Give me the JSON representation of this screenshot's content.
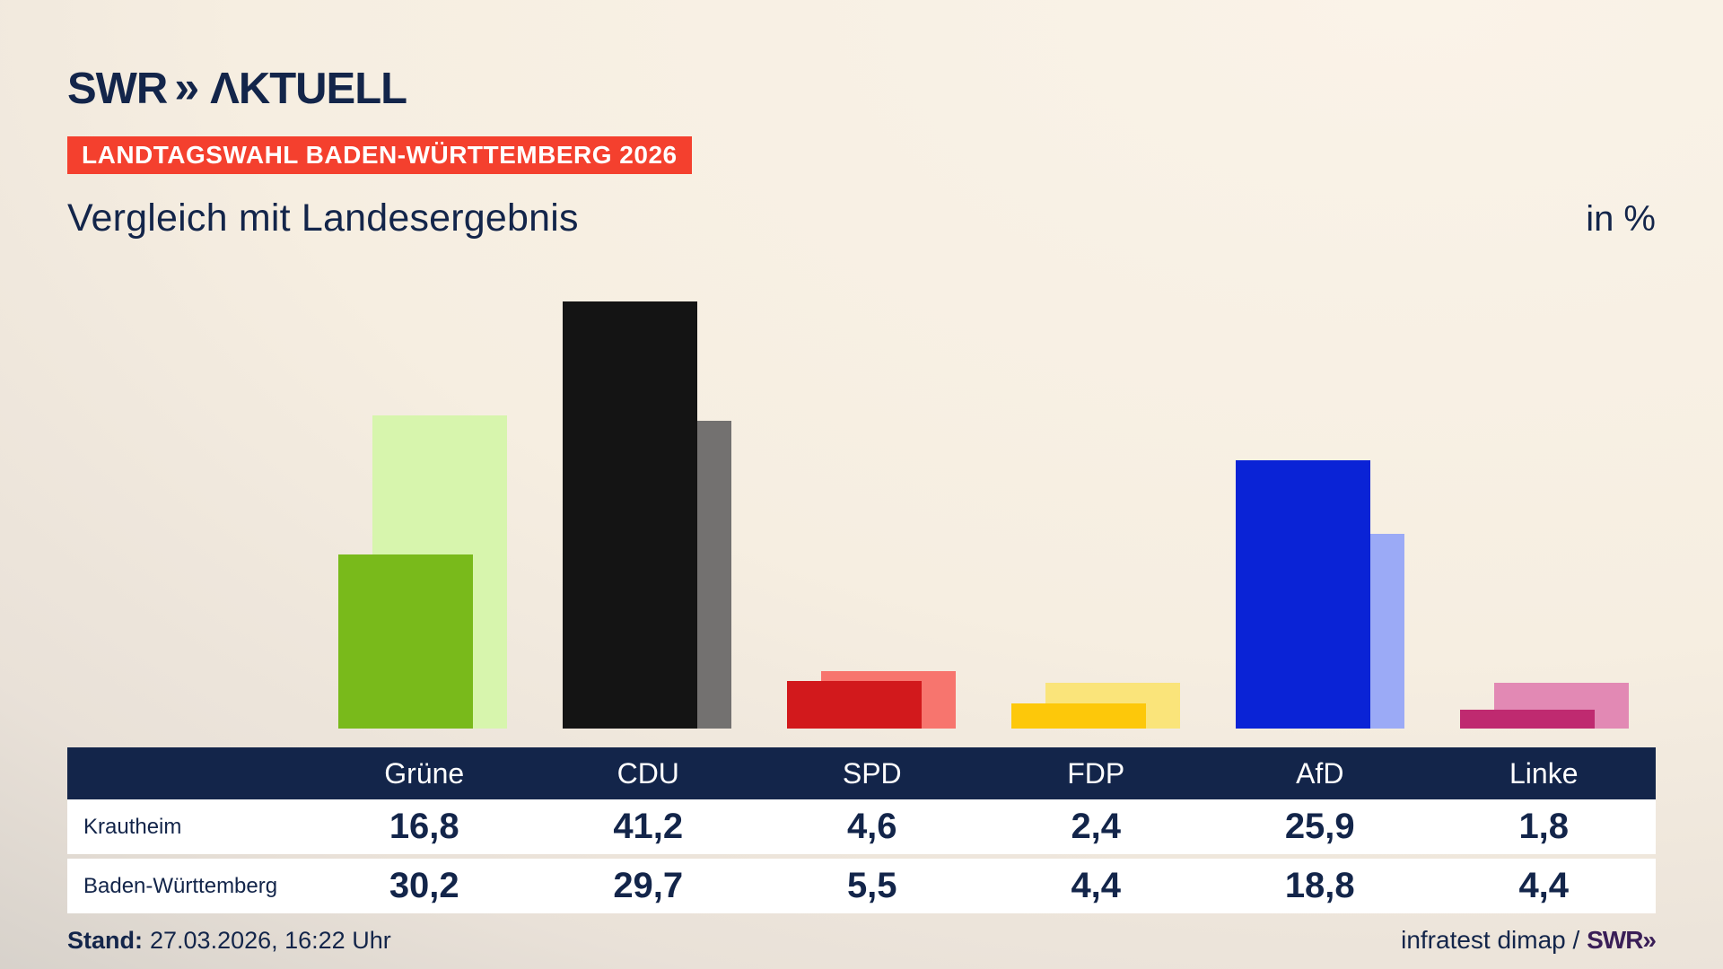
{
  "header": {
    "logo_swr": "SWR",
    "logo_chevron": "»",
    "logo_aktuell": "ΛKTUELL",
    "badge": "LANDTAGSWAHL BADEN-WÜRTTEMBERG 2026",
    "title": "Vergleich mit Landesergebnis",
    "unit_label": "in %"
  },
  "chart_data": {
    "type": "bar",
    "categories": [
      "Grüne",
      "CDU",
      "SPD",
      "FDP",
      "AfD",
      "Linke"
    ],
    "series": [
      {
        "name": "Krautheim",
        "values": [
          16.8,
          41.2,
          4.6,
          2.4,
          25.9,
          1.8
        ]
      },
      {
        "name": "Baden-Württemberg",
        "values": [
          30.2,
          29.7,
          5.5,
          4.4,
          18.8,
          4.4
        ]
      }
    ],
    "title": "Vergleich mit Landesergebnis",
    "xlabel": "",
    "ylabel": "in %",
    "ylim": [
      0,
      45
    ],
    "grid": false,
    "legend_position": "none",
    "axes_shown": false,
    "note": "paired overlapping bars; saturated front bar = Krautheim, pale back bar (offset right) = Baden-Württemberg"
  },
  "colors": {
    "navy": "#13254a",
    "badge_red": "#f4402e",
    "source_purple": "#3a1e57",
    "table_header_bg": "#13254a",
    "table_row_bg": "#ffffff",
    "party": [
      {
        "name": "Grüne",
        "main": "#79ba1b",
        "light": "#d7f5ad"
      },
      {
        "name": "CDU",
        "main": "#141414",
        "light": "#737170"
      },
      {
        "name": "SPD",
        "main": "#d2191c",
        "light": "#f7756e"
      },
      {
        "name": "FDP",
        "main": "#fdc80a",
        "light": "#fae47a"
      },
      {
        "name": "AfD",
        "main": "#0a23d6",
        "light": "#9baaf6"
      },
      {
        "name": "Linke",
        "main": "#bf2a70",
        "light": "#e289b4"
      }
    ]
  },
  "table": {
    "columns": [
      "Grüne",
      "CDU",
      "SPD",
      "FDP",
      "AfD",
      "Linke"
    ],
    "rows": [
      {
        "label": "Krautheim",
        "values": [
          "16,8",
          "41,2",
          "4,6",
          "2,4",
          "25,9",
          "1,8"
        ]
      },
      {
        "label": "Baden-Württemberg",
        "values": [
          "30,2",
          "29,7",
          "5,5",
          "4,4",
          "18,8",
          "4,4"
        ]
      }
    ]
  },
  "footer": {
    "stand_label": "Stand:",
    "stand_value": "27.03.2026, 16:22 Uhr",
    "source_prefix": "infratest dimap / ",
    "source_logo": "SWR»"
  }
}
